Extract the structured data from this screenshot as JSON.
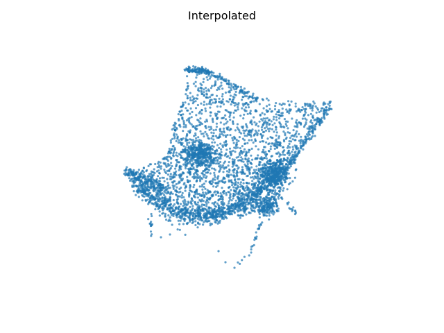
{
  "chart_data": {
    "type": "scatter",
    "title": "Interpolated",
    "projection": "3d",
    "axes_visible": false,
    "grid": false,
    "legend": "none",
    "point_color": "#1f77b4",
    "point_alpha": 0.7,
    "n_points_estimate": 4000,
    "xlabel": "",
    "ylabel": "",
    "zlabel": "",
    "description_points": [
      {
        "x": 0.0,
        "y": 0.0,
        "z": 0.0
      }
    ]
  }
}
